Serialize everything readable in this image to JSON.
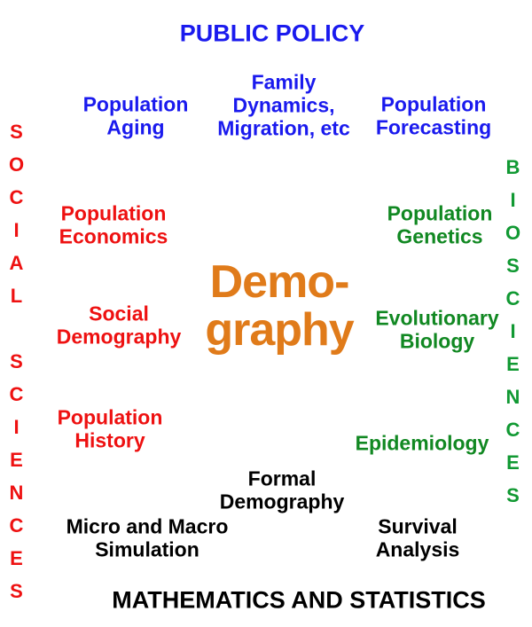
{
  "top_label": "PUBLIC POLICY",
  "bottom_label": "MATHEMATICS AND STATISTICS",
  "left_label": "SOCIAL SCIENCES",
  "right_label": "BIOSCIENCES",
  "center": [
    "Demo-",
    "graphy"
  ],
  "nodes": [
    {
      "lines": [
        "Population",
        "Aging"
      ]
    },
    {
      "lines": [
        "Family",
        "Dynamics,",
        "Migration, etc"
      ]
    },
    {
      "lines": [
        "Population",
        "Forecasting"
      ]
    },
    {
      "lines": [
        "Population",
        "Economics"
      ]
    },
    {
      "lines": [
        "Social",
        "Demography"
      ]
    },
    {
      "lines": [
        "Population",
        "History"
      ]
    },
    {
      "lines": [
        "Population",
        "Genetics"
      ]
    },
    {
      "lines": [
        "Evolutionary",
        "Biology"
      ]
    },
    {
      "lines": [
        "Epidemiology"
      ]
    },
    {
      "lines": [
        "Formal",
        "Demography"
      ]
    },
    {
      "lines": [
        "Micro and Macro",
        "Simulation"
      ]
    },
    {
      "lines": [
        "Survival",
        "Analysis"
      ]
    }
  ]
}
